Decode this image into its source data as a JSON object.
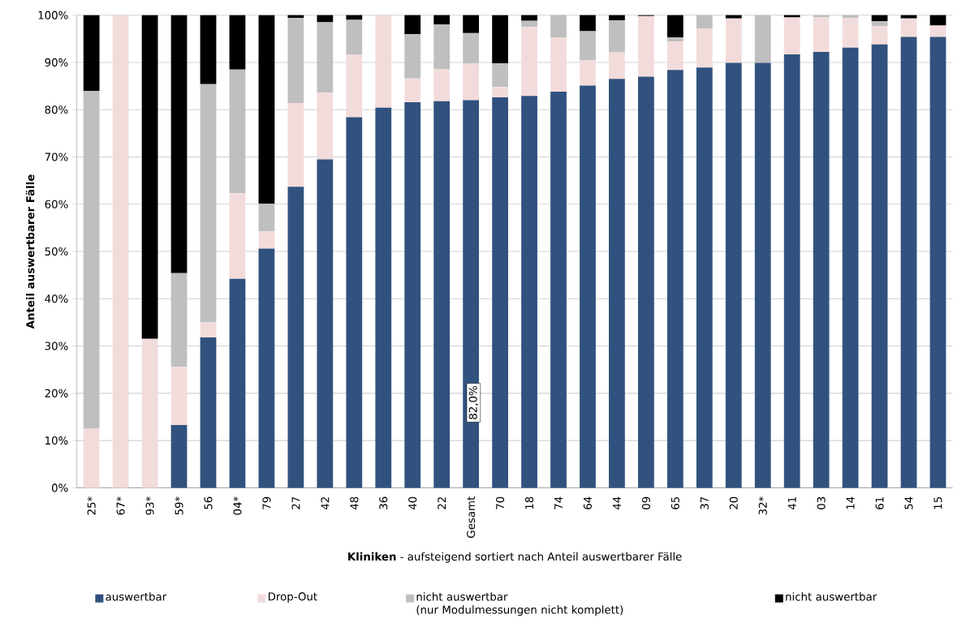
{
  "chart_data": {
    "type": "bar",
    "stacked": true,
    "xlabel": "**Kliniken** - aufsteigend sortiert nach Anteil auswertbarer Fälle",
    "ylabel": "Anteil auswertbarer Fälle",
    "categories": [
      "25*",
      "67*",
      "93*",
      "59*",
      "56",
      "04*",
      "79",
      "27",
      "42",
      "48",
      "36",
      "40",
      "22",
      "Gesamt",
      "70",
      "18",
      "74",
      "64",
      "44",
      "09",
      "65",
      "37",
      "20",
      "32*",
      "41",
      "03",
      "14",
      "61",
      "54",
      "15"
    ],
    "series": [
      {
        "name": "auswertbar",
        "color": "#31527e",
        "values": [
          0,
          0,
          0,
          13.3,
          31.8,
          44.2,
          50.6,
          63.7,
          69.5,
          78.4,
          80.4,
          81.6,
          81.8,
          82.0,
          82.6,
          82.9,
          83.8,
          85.1,
          86.5,
          87.0,
          88.4,
          88.9,
          89.9,
          89.9,
          91.7,
          92.2,
          93.1,
          93.8,
          95.4,
          95.4
        ]
      },
      {
        "name": "Drop-Out",
        "color": "#f2dcdb",
        "values": [
          12.5,
          100,
          31.5,
          12.3,
          3.2,
          18.1,
          3.7,
          17.7,
          14.1,
          13.2,
          19.6,
          5.0,
          6.8,
          7.8,
          2.2,
          14.6,
          11.5,
          5.4,
          5.6,
          12.8,
          6.0,
          8.3,
          9.4,
          0,
          7.8,
          7.3,
          6.3,
          3.9,
          3.9,
          2.4
        ]
      },
      {
        "name": "nicht auswertbar\n(nur Modulmessungen nicht komplett)",
        "color": "#bfbfbf",
        "values": [
          71.5,
          0,
          0,
          19.8,
          50.4,
          26.2,
          5.8,
          18.0,
          14.9,
          7.4,
          0,
          9.4,
          9.4,
          6.4,
          5.0,
          1.3,
          4.7,
          6.1,
          6.8,
          0,
          0.9,
          2.8,
          0,
          10.1,
          0,
          0.5,
          0.6,
          1.0,
          0,
          0
        ]
      },
      {
        "name": "nicht auswertbar",
        "color": "#000000",
        "values": [
          16.0,
          0,
          68.5,
          54.6,
          14.6,
          11.5,
          39.9,
          0.6,
          1.5,
          1.0,
          0,
          4.0,
          2.0,
          3.8,
          10.2,
          1.2,
          0,
          3.4,
          1.1,
          0.2,
          4.7,
          0,
          0.7,
          0,
          0.5,
          0,
          0,
          1.3,
          0.7,
          2.2
        ]
      }
    ],
    "ylim": [
      0,
      100
    ],
    "yticks": [
      {
        "value": 0,
        "label": "0%"
      },
      {
        "value": 10,
        "label": "10%"
      },
      {
        "value": 20,
        "label": "20%"
      },
      {
        "value": 30,
        "label": "30%"
      },
      {
        "value": 40,
        "label": "40%"
      },
      {
        "value": 50,
        "label": "50%"
      },
      {
        "value": 60,
        "label": "60%"
      },
      {
        "value": 70,
        "label": "70%"
      },
      {
        "value": 80,
        "label": "80%"
      },
      {
        "value": 90,
        "label": "90%"
      },
      {
        "value": 100,
        "label": "100%"
      }
    ],
    "grid": "y",
    "legend": "bottom",
    "annotations": [
      "82,0%"
    ]
  }
}
